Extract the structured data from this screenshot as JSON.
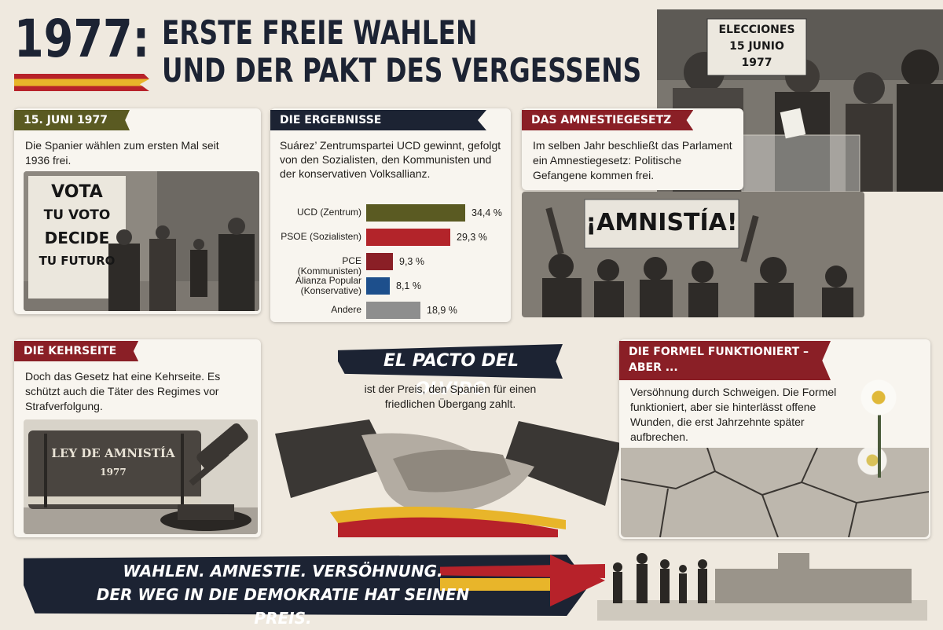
{
  "header": {
    "year": "1977:",
    "title_line1": "ERSTE FREIE WAHLEN",
    "title_line2": "UND DER PAKT DES VERGESSENS"
  },
  "election_photo": {
    "sign": "ELECCIONES\n15 JUNIO\n1977"
  },
  "panel_june": {
    "ribbon": "15. JUNI 1977",
    "text": "Die Spanier wählen zum ersten Mal seit 1936 frei.",
    "poster": [
      "VOTA",
      "TU VOTO",
      "DECIDE",
      "TU FUTURO"
    ]
  },
  "panel_results": {
    "ribbon": "DIE ERGEBNISSE",
    "text": "Suárez’ Zentrumspartei UCD gewinnt, gefolgt von den Sozialisten, den Kommunisten und der konservativen Volksallianz."
  },
  "chart_data": {
    "type": "bar",
    "categories": [
      "UCD (Zentrum)",
      "PSOE (Sozialisten)",
      "PCE (Kommunisten)",
      "Alianza Popular (Konservative)",
      "Andere"
    ],
    "values": [
      34.4,
      29.3,
      9.3,
      8.1,
      18.9
    ],
    "value_labels": [
      "34,4 %",
      "29,3 %",
      "9,3 %",
      "8,1 %",
      "18,9 %"
    ],
    "colors": [
      "#5a5a22",
      "#b3242a",
      "#8a1f26",
      "#1d4f8c",
      "#8e8e8e"
    ]
  },
  "panel_amnesty": {
    "ribbon": "DAS AMNESTIEGESETZ",
    "text": "Im selben Jahr beschließt das Parlament ein Amnestiegesetz: Politische Gefangene kommen frei.",
    "banner": "¡AMNISTÍA!"
  },
  "panel_reverse": {
    "ribbon": "DIE KEHRSEITE",
    "text": "Doch das Gesetz hat eine Kehrseite. Es schützt auch die Täter des Regimes vor Strafverfolgung.",
    "book_title": "LEY DE AMNISTÍA",
    "book_year": "1977"
  },
  "pact": {
    "title": "EL PACTO DEL OLVIDO",
    "text": "ist der Preis, den Spanien für einen friedlichen Übergang zahlt."
  },
  "panel_formula": {
    "ribbon_line1": "DIE FORMEL FUNKTIONIERT –",
    "ribbon_line2": "ABER ...",
    "text": "Versöhnung durch Schweigen. Die Formel funktioniert, aber sie hinterlässt offene Wunden, die erst Jahrzehnte später aufbrechen."
  },
  "footer": {
    "line1": "WAHLEN. AMNESTIE. VERSÖHNUNG.",
    "line2": "DER WEG IN DIE DEMOKRATIE HAT SEINEN PREIS."
  },
  "colors": {
    "navy": "#1c2333",
    "olive": "#5a5a22",
    "red": "#8a1f26",
    "gold": "#e8b52a"
  }
}
